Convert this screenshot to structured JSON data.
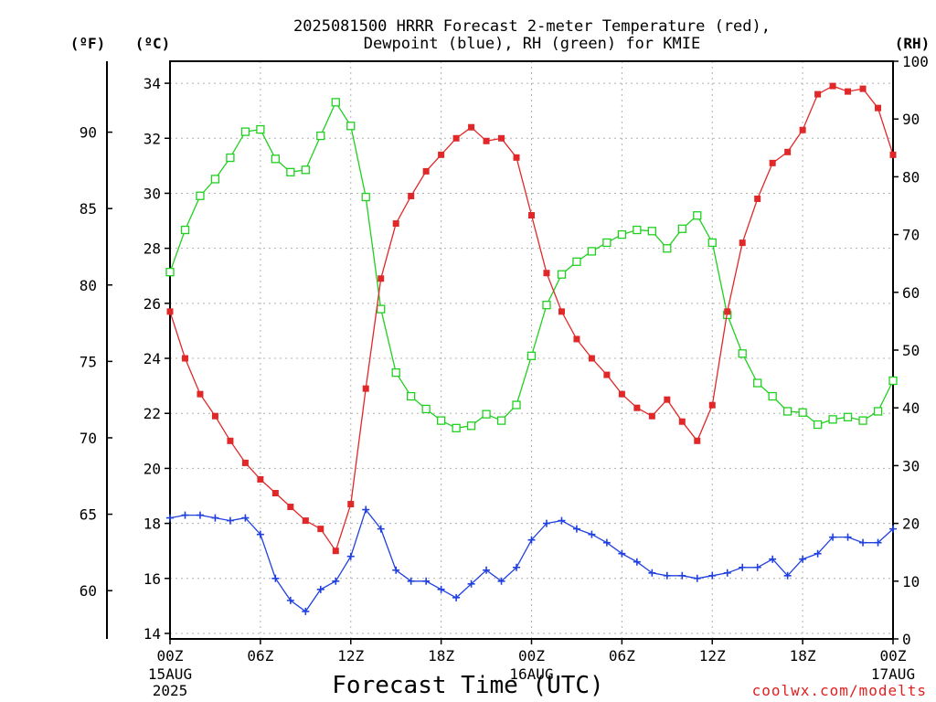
{
  "chart_data": {
    "type": "line",
    "title_line1": "2025081500 HRRR Forecast 2-meter Temperature (red),",
    "title_line2": "Dewpoint (blue), RH (green) for KMIE",
    "xlabel": "Forecast Time (UTC)",
    "unit_f": "(ºF)",
    "unit_c": "(ºC)",
    "unit_rh": "(RH)",
    "credit": "coolwx.com/modelts",
    "x_ticks": [
      "00Z",
      "06Z",
      "12Z",
      "18Z",
      "00Z",
      "06Z",
      "12Z",
      "18Z",
      "00Z"
    ],
    "x_tick_hours": [
      0,
      6,
      12,
      18,
      24,
      30,
      36,
      42,
      48
    ],
    "date_labels": [
      {
        "hour": 0,
        "lines": [
          "15AUG",
          "2025"
        ]
      },
      {
        "hour": 24,
        "lines": [
          "16AUG"
        ]
      },
      {
        "hour": 48,
        "lines": [
          "17AUG"
        ]
      }
    ],
    "xlim": [
      0,
      48
    ],
    "ylim_c": [
      13.8,
      34.8
    ],
    "y_ticks_c": [
      14,
      16,
      18,
      20,
      22,
      24,
      26,
      28,
      30,
      32,
      34
    ],
    "y_ticks_f": [
      60,
      65,
      70,
      75,
      80,
      85,
      90
    ],
    "ylim_rh": [
      0,
      100
    ],
    "y_ticks_rh": [
      0,
      10,
      20,
      30,
      40,
      50,
      60,
      70,
      80,
      90,
      100
    ],
    "grid": true,
    "colors": {
      "temperature": "#e02828",
      "dewpoint": "#2040e0",
      "rh": "#20d020"
    },
    "temperature_c": [
      25.7,
      24.0,
      22.7,
      21.9,
      21.0,
      20.2,
      19.6,
      19.1,
      18.6,
      18.1,
      17.8,
      17.0,
      18.7,
      22.9,
      26.9,
      28.9,
      29.9,
      30.8,
      31.4,
      32.0,
      32.4,
      31.9,
      32.0,
      31.3,
      29.2,
      27.1,
      25.7,
      24.7,
      24.0,
      23.4,
      22.7,
      22.2,
      21.9,
      22.5,
      21.7,
      21.0,
      22.3,
      25.7,
      28.2,
      29.8,
      31.1,
      31.5,
      32.3,
      33.6,
      33.9,
      33.7,
      33.8,
      33.1,
      31.4
    ],
    "dewpoint_c": [
      18.2,
      18.3,
      18.3,
      18.2,
      18.1,
      18.2,
      17.6,
      16.0,
      15.2,
      14.8,
      15.6,
      15.9,
      16.8,
      18.5,
      17.8,
      16.3,
      15.9,
      15.9,
      15.6,
      15.3,
      15.8,
      16.3,
      15.9,
      16.4,
      17.4,
      18.0,
      18.1,
      17.8,
      17.6,
      17.3,
      16.9,
      16.6,
      16.2,
      16.1,
      16.1,
      16.0,
      16.1,
      16.2,
      16.4,
      16.4,
      16.7,
      16.1,
      16.7,
      16.9,
      17.5,
      17.5,
      17.3,
      17.3,
      17.8
    ],
    "rh_percent": [
      63.5,
      70.8,
      76.7,
      79.6,
      83.3,
      87.8,
      88.2,
      83.1,
      80.8,
      81.2,
      87.1,
      92.9,
      88.8,
      76.5,
      57.1,
      46.1,
      42.0,
      39.8,
      37.8,
      36.5,
      36.9,
      38.9,
      37.8,
      40.5,
      49.0,
      57.8,
      63.1,
      65.3,
      67.1,
      68.6,
      70.0,
      70.8,
      70.6,
      67.6,
      71.0,
      73.3,
      68.6,
      56.1,
      49.4,
      44.3,
      42.0,
      39.4,
      39.2,
      37.1,
      38.0,
      38.4,
      37.8,
      39.4,
      44.7
    ]
  }
}
